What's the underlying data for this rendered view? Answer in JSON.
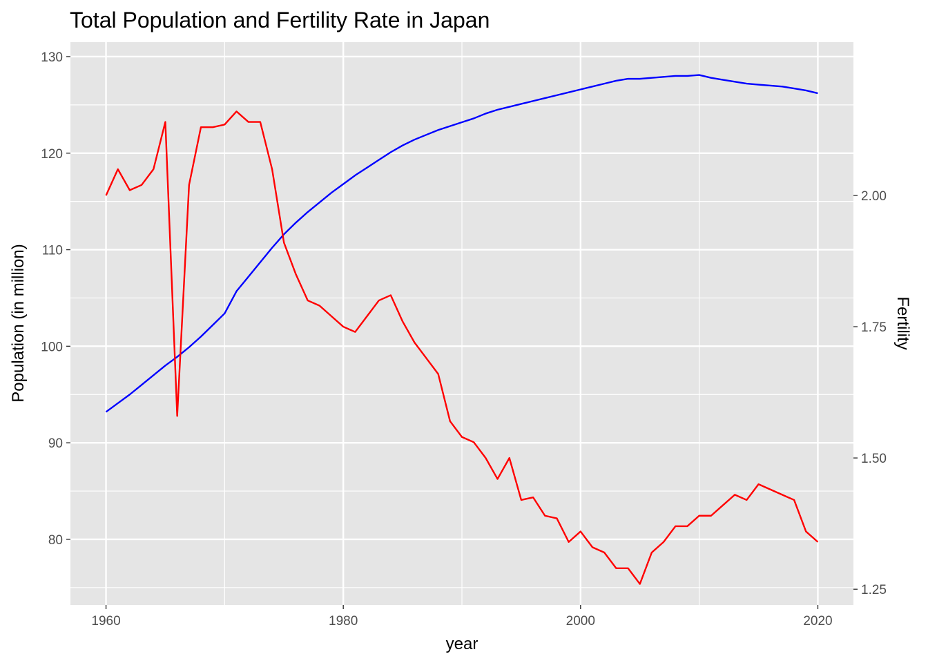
{
  "chart_data": {
    "type": "line",
    "title": "Total Population and Fertility Rate in Japan",
    "xlabel": "year",
    "ylabel": "Population (in million)",
    "y2label": "Fertility",
    "xlim": [
      1957,
      2023
    ],
    "ylim": [
      73.2,
      131.5
    ],
    "y2lim": [
      1.22,
      2.292
    ],
    "x_ticks": [
      1960,
      1980,
      2000,
      2020
    ],
    "x_tick_labels": [
      "1960",
      "1980",
      "2000",
      "2020"
    ],
    "y_ticks": [
      80,
      90,
      100,
      110,
      120,
      130
    ],
    "y_tick_labels": [
      "80",
      "90",
      "100",
      "110",
      "120",
      "130"
    ],
    "y2_ticks": [
      1.25,
      1.5,
      1.75,
      2.0
    ],
    "y2_tick_labels": [
      "1.25",
      "1.50",
      "1.75",
      "2.00"
    ],
    "grid": true,
    "background": "#e5e5e5",
    "grid_color": "#ffffff",
    "series": [
      {
        "axis": "left",
        "color": "#0000ff",
        "x": [
          1960,
          1961,
          1962,
          1963,
          1964,
          1965,
          1966,
          1967,
          1968,
          1969,
          1970,
          1971,
          1972,
          1973,
          1974,
          1975,
          1976,
          1977,
          1978,
          1979,
          1980,
          1981,
          1982,
          1983,
          1984,
          1985,
          1986,
          1987,
          1988,
          1989,
          1990,
          1991,
          1992,
          1993,
          1994,
          1995,
          1996,
          1997,
          1998,
          1999,
          2000,
          2001,
          2002,
          2003,
          2004,
          2005,
          2006,
          2007,
          2008,
          2009,
          2010,
          2011,
          2012,
          2013,
          2014,
          2015,
          2016,
          2017,
          2018,
          2019,
          2020
        ],
        "values": [
          93.2,
          94.1,
          95.0,
          96.0,
          97.0,
          98.0,
          98.9,
          99.9,
          101.0,
          102.2,
          103.4,
          105.7,
          107.2,
          108.7,
          110.2,
          111.6,
          112.8,
          113.9,
          114.9,
          115.9,
          116.8,
          117.7,
          118.5,
          119.3,
          120.1,
          120.8,
          121.4,
          121.9,
          122.4,
          122.8,
          123.2,
          123.6,
          124.1,
          124.5,
          124.8,
          125.1,
          125.4,
          125.7,
          126.0,
          126.3,
          126.6,
          126.9,
          127.2,
          127.5,
          127.7,
          127.7,
          127.8,
          127.9,
          128.0,
          128.0,
          128.1,
          127.8,
          127.6,
          127.4,
          127.2,
          127.1,
          127.0,
          126.9,
          126.7,
          126.5,
          126.2
        ]
      },
      {
        "axis": "right",
        "color": "#ff0000",
        "x": [
          1960,
          1961,
          1962,
          1963,
          1964,
          1965,
          1966,
          1967,
          1968,
          1969,
          1970,
          1971,
          1972,
          1973,
          1974,
          1975,
          1976,
          1977,
          1978,
          1979,
          1980,
          1981,
          1982,
          1983,
          1984,
          1985,
          1986,
          1987,
          1988,
          1989,
          1990,
          1991,
          1992,
          1993,
          1994,
          1995,
          1996,
          1997,
          1998,
          1999,
          2000,
          2001,
          2002,
          2003,
          2004,
          2005,
          2006,
          2007,
          2008,
          2009,
          2010,
          2011,
          2012,
          2013,
          2014,
          2015,
          2016,
          2017,
          2018,
          2019,
          2020
        ],
        "values": [
          2.0,
          2.05,
          2.01,
          2.02,
          2.05,
          2.14,
          1.58,
          2.02,
          2.13,
          2.13,
          2.135,
          2.16,
          2.14,
          2.14,
          2.05,
          1.91,
          1.85,
          1.8,
          1.79,
          1.77,
          1.75,
          1.74,
          1.77,
          1.8,
          1.81,
          1.76,
          1.72,
          1.69,
          1.66,
          1.57,
          1.54,
          1.53,
          1.5,
          1.46,
          1.5,
          1.42,
          1.425,
          1.39,
          1.385,
          1.34,
          1.36,
          1.33,
          1.32,
          1.29,
          1.29,
          1.26,
          1.32,
          1.34,
          1.37,
          1.37,
          1.39,
          1.39,
          1.41,
          1.43,
          1.42,
          1.45,
          1.44,
          1.43,
          1.42,
          1.36,
          1.34
        ]
      }
    ]
  }
}
